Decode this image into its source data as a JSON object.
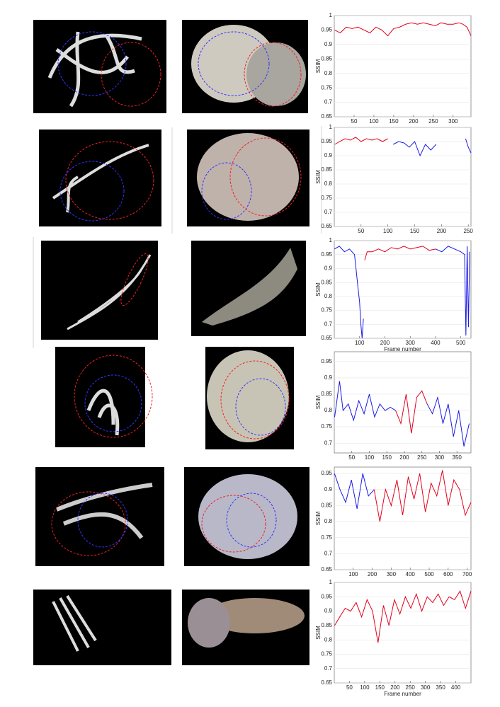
{
  "chart_data": [
    {
      "type": "line",
      "xlim": [
        0,
        345
      ],
      "ylim": [
        0.65,
        1
      ],
      "xticks": [
        50,
        100,
        150,
        200,
        250,
        300
      ],
      "yticks": [
        0.65,
        0.7,
        0.75,
        0.8,
        0.85,
        0.9,
        0.95,
        1
      ],
      "ylabel": "SSIM",
      "x": [
        1,
        15,
        30,
        45,
        60,
        75,
        90,
        105,
        120,
        135,
        150,
        165,
        180,
        195,
        210,
        225,
        240,
        255,
        270,
        285,
        300,
        315,
        325,
        335,
        345
      ],
      "series": [
        {
          "color": "#e3001b",
          "values": [
            0.95,
            0.94,
            0.96,
            0.955,
            0.96,
            0.95,
            0.94,
            0.96,
            0.95,
            0.93,
            0.955,
            0.96,
            0.97,
            0.975,
            0.97,
            0.975,
            0.97,
            0.965,
            0.975,
            0.97,
            0.97,
            0.975,
            0.97,
            0.96,
            0.93
          ]
        }
      ]
    },
    {
      "type": "line",
      "xlim": [
        0,
        255
      ],
      "ylim": [
        0.65,
        1
      ],
      "xticks": [
        50,
        100,
        150,
        200,
        250
      ],
      "yticks": [
        0.65,
        0.7,
        0.75,
        0.8,
        0.85,
        0.9,
        0.95,
        1
      ],
      "ylabel": "SSIM",
      "x": [
        1,
        10,
        20,
        30,
        40,
        50,
        60,
        70,
        80,
        90,
        100,
        110,
        120,
        130,
        140,
        150,
        160,
        170,
        180,
        190,
        200,
        245,
        250,
        255
      ],
      "series": [
        {
          "color": "#e3001b",
          "values": [
            0.94,
            0.95,
            0.96,
            0.955,
            0.965,
            0.95,
            0.96,
            0.955,
            0.96,
            0.95,
            0.96,
            null,
            null,
            null,
            null,
            null,
            null,
            null,
            null,
            null,
            null,
            null,
            null,
            null
          ]
        },
        {
          "color": "#1a1ae6",
          "values": [
            null,
            null,
            null,
            null,
            null,
            null,
            null,
            null,
            null,
            null,
            null,
            0.94,
            0.95,
            0.945,
            0.93,
            0.95,
            0.9,
            0.94,
            0.92,
            0.94,
            null,
            0.96,
            0.93,
            0.91
          ]
        }
      ]
    },
    {
      "type": "line",
      "xlim": [
        0,
        540
      ],
      "ylim": [
        0.65,
        1
      ],
      "xticks": [
        100,
        200,
        300,
        400,
        500
      ],
      "yticks": [
        0.65,
        0.7,
        0.75,
        0.8,
        0.85,
        0.9,
        0.95,
        1
      ],
      "ylabel": "SSIM",
      "xlabel": "Frame number",
      "x": [
        1,
        20,
        40,
        60,
        80,
        95,
        100,
        105,
        110,
        115,
        120,
        130,
        150,
        175,
        200,
        225,
        250,
        275,
        300,
        325,
        350,
        375,
        400,
        425,
        450,
        475,
        500,
        515,
        520,
        525,
        530,
        535
      ],
      "series": [
        {
          "color": "#e3001b",
          "values": [
            null,
            null,
            null,
            null,
            null,
            null,
            null,
            null,
            null,
            null,
            0.93,
            0.96,
            0.96,
            0.97,
            0.96,
            0.975,
            0.97,
            0.98,
            0.97,
            0.975,
            0.98,
            0.965,
            0.97,
            null,
            null,
            null,
            null,
            null,
            null,
            null,
            null,
            null
          ]
        },
        {
          "color": "#1a1ae6",
          "values": [
            0.97,
            0.98,
            0.96,
            0.97,
            0.95,
            0.82,
            0.78,
            0.7,
            0.65,
            0.72,
            null,
            null,
            null,
            null,
            null,
            null,
            null,
            null,
            null,
            null,
            null,
            null,
            0.97,
            0.96,
            0.98,
            0.97,
            0.96,
            0.95,
            0.66,
            0.98,
            0.69,
            0.96
          ]
        }
      ]
    },
    {
      "type": "line",
      "xlim": [
        0,
        390
      ],
      "ylim": [
        0.67,
        0.98
      ],
      "xticks": [
        50,
        100,
        150,
        200,
        250,
        300,
        350
      ],
      "yticks": [
        0.7,
        0.75,
        0.8,
        0.85,
        0.9,
        0.95
      ],
      "ylabel": "SSIM",
      "x": [
        1,
        15,
        25,
        40,
        55,
        70,
        85,
        100,
        115,
        130,
        145,
        160,
        175,
        190,
        205,
        220,
        235,
        250,
        265,
        280,
        295,
        310,
        325,
        340,
        355,
        370,
        385
      ],
      "series": [
        {
          "color": "#e3001b",
          "values": [
            null,
            null,
            null,
            null,
            null,
            null,
            null,
            null,
            null,
            null,
            null,
            null,
            0.8,
            0.76,
            0.85,
            0.73,
            0.84,
            0.86,
            0.82,
            null,
            null,
            null,
            null,
            null,
            null,
            null,
            null
          ]
        },
        {
          "color": "#1a1ae6",
          "values": [
            0.78,
            0.89,
            0.8,
            0.82,
            0.77,
            0.83,
            0.79,
            0.85,
            0.78,
            0.82,
            0.8,
            0.81,
            0.8,
            null,
            null,
            null,
            null,
            null,
            0.82,
            0.79,
            0.84,
            0.76,
            0.82,
            0.72,
            0.8,
            0.69,
            0.76
          ]
        }
      ]
    },
    {
      "type": "line",
      "xlim": [
        0,
        720
      ],
      "ylim": [
        0.65,
        0.97
      ],
      "xticks": [
        100,
        200,
        300,
        400,
        500,
        600,
        700
      ],
      "yticks": [
        0.65,
        0.7,
        0.75,
        0.8,
        0.85,
        0.9,
        0.95
      ],
      "ylabel": "SSIM",
      "x": [
        1,
        30,
        60,
        90,
        120,
        150,
        180,
        210,
        240,
        270,
        300,
        330,
        360,
        390,
        420,
        450,
        480,
        510,
        540,
        570,
        600,
        630,
        660,
        690,
        720
      ],
      "series": [
        {
          "color": "#e3001b",
          "values": [
            null,
            null,
            null,
            null,
            null,
            null,
            null,
            0.9,
            0.8,
            0.9,
            0.85,
            0.93,
            0.82,
            0.94,
            0.87,
            0.95,
            0.83,
            0.92,
            0.88,
            0.96,
            0.85,
            0.93,
            0.9,
            0.82,
            0.86
          ]
        },
        {
          "color": "#1a1ae6",
          "values": [
            0.95,
            0.9,
            0.86,
            0.93,
            0.84,
            0.95,
            0.88,
            0.9,
            null,
            null,
            null,
            null,
            null,
            null,
            null,
            null,
            null,
            null,
            null,
            null,
            null,
            null,
            null,
            null,
            null
          ]
        }
      ]
    },
    {
      "type": "line",
      "xlim": [
        0,
        450
      ],
      "ylim": [
        0.65,
        1
      ],
      "xticks": [
        50,
        100,
        150,
        200,
        250,
        300,
        350,
        400
      ],
      "yticks": [
        0.65,
        0.7,
        0.75,
        0.8,
        0.85,
        0.9,
        0.95,
        1
      ],
      "ylabel": "SSIM",
      "xlabel": "Frame number",
      "x": [
        1,
        18,
        36,
        54,
        72,
        90,
        108,
        126,
        144,
        162,
        180,
        198,
        216,
        234,
        252,
        270,
        288,
        306,
        324,
        342,
        360,
        378,
        396,
        414,
        432,
        450
      ],
      "series": [
        {
          "color": "#e3001b",
          "values": [
            0.85,
            0.88,
            0.91,
            0.9,
            0.93,
            0.88,
            0.94,
            0.9,
            0.79,
            0.92,
            0.85,
            0.94,
            0.89,
            0.95,
            0.91,
            0.96,
            0.9,
            0.95,
            0.93,
            0.96,
            0.92,
            0.95,
            0.94,
            0.97,
            0.91,
            0.97
          ]
        }
      ]
    }
  ]
}
